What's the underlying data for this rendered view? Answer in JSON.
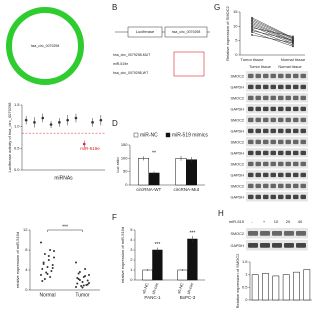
{
  "panel_a": {
    "center_label": "hsa_circ_0079298"
  },
  "panel_b": {
    "letter": "B",
    "construct": [
      "Luciferase",
      "hsa_circ_0079298"
    ],
    "rows": [
      "hsa_circ_0079298-MUT",
      "miR-519e",
      "hsa_circ_0079298-WT"
    ]
  },
  "panel_c": {
    "type": "dot",
    "ylabel": "Luciferase activity of hsa_circ_0079298",
    "xlabel": "miRNAs",
    "categories": [
      null,
      null,
      null,
      null,
      null,
      null,
      null,
      null,
      null,
      null
    ],
    "values": [
      1.15,
      1.1,
      1.2,
      1.05,
      1.1,
      1.15,
      1.2,
      0.6,
      1.1,
      1.15
    ],
    "errors": [
      0.1,
      0.12,
      0.1,
      0.08,
      0.1,
      0.12,
      0.1,
      0.08,
      0.1,
      0.12
    ],
    "highlight": 7,
    "highlight_label": "miR-519e",
    "reference": 0.85,
    "color": "#333333",
    "highlight_color": "#d62728",
    "ylim": [
      0,
      1.5
    ],
    "yticks": [
      {
        "value": 0,
        "label": "0.0"
      },
      {
        "value": 0.5,
        "label": "0.5"
      },
      {
        "value": 1,
        "label": "1.0"
      },
      {
        "value": 1.5,
        "label": "1.5"
      }
    ]
  },
  "panel_d": {
    "letter": "D",
    "type": "bar",
    "ylabel": "Luc ratio",
    "legend": "top",
    "categories": [
      "circRNA-WT",
      "circRNA-Mut"
    ],
    "series": [
      {
        "name": "miR-NC",
        "color": "#ffffff",
        "values": [
          100,
          100
        ],
        "errors": [
          8,
          9
        ]
      },
      {
        "name": "miR-519 mimics",
        "color": "#111111",
        "values": [
          45,
          95
        ],
        "errors": [
          6,
          10
        ]
      }
    ],
    "significance": [
      "**",
      null
    ],
    "ylim": [
      0,
      150
    ],
    "yticks": [
      0,
      50,
      100,
      150
    ]
  },
  "panel_e": {
    "type": "scatter",
    "ylabel": "relative expression of miR-519d",
    "categories": [
      "Normal",
      "Tumor"
    ],
    "groups": [
      [
        9.5,
        8,
        7.2,
        6.5,
        6,
        5.5,
        5,
        4.6,
        4.2,
        3.8,
        3.5,
        3,
        2.6,
        2.2,
        7.8,
        6.8,
        5.2,
        4.4,
        3.2,
        1.8
      ],
      [
        5.5,
        4.2,
        3.6,
        3,
        2.6,
        2.2,
        1.9,
        1.6,
        1.3,
        1,
        0.8,
        0.6,
        2.8,
        2,
        1.4,
        0.9,
        3.3,
        1.1,
        0.5,
        2.4
      ]
    ],
    "significance": "***",
    "ylim": [
      0,
      12
    ],
    "yticks": [
      0,
      4,
      8,
      12
    ]
  },
  "panel_f": {
    "letter": "F",
    "type": "bar",
    "ylabel": "relative expression of miR-519d",
    "legend": "under-bars",
    "categories": [
      "PANC-1",
      "BxPC-3"
    ],
    "series": [
      {
        "name": "sh-NC",
        "color": "#ffffff",
        "values": [
          1,
          1
        ],
        "errors": [
          0.1,
          0.1
        ]
      },
      {
        "name": "sh-circ",
        "color": "#111111",
        "values": [
          3,
          4.1
        ],
        "errors": [
          0.25,
          0.3
        ]
      }
    ],
    "significance": [
      "***",
      "***"
    ],
    "ylim": [
      0,
      5
    ],
    "yticks": [
      0,
      1,
      2,
      3,
      4,
      5
    ]
  },
  "panel_g": {
    "letter": "G",
    "type": "paired",
    "ylabel": "Relative expression of SMOC2",
    "categories": [
      "Tumor tissue",
      "Normal tissue"
    ],
    "tumor": [
      13,
      12,
      11.5,
      10.5,
      10,
      9.5,
      9,
      8.5,
      8,
      7,
      12.5,
      11
    ],
    "normal": [
      6,
      5.5,
      5,
      4.5,
      4,
      6.5,
      3.5,
      5.2,
      3,
      4.2,
      5.8,
      4.8
    ],
    "ylim": [
      0,
      15
    ],
    "yticks": [
      0,
      5,
      10,
      15
    ],
    "blot": {
      "groups": [
        "Tumor tissue",
        "Normal tissue"
      ],
      "rows": [
        "SMOC2",
        "GAPDH",
        "SMOC2",
        "GAPDH",
        "SMOC2",
        "GAPDH",
        "SMOC2",
        "GAPDH",
        "SMOC2",
        "GAPDH",
        "SMOC2",
        "GAPDH"
      ]
    }
  },
  "panel_h": {
    "letter": "H",
    "treatment": "miR-519",
    "columns": [
      "-",
      "+",
      "10",
      "20",
      "40"
    ],
    "blot_rows": [
      "SMOC2",
      "GAPDH"
    ],
    "chart": {
      "type": "bar",
      "ylabel": "Relative expression of SMOC2",
      "color": "#ffffff",
      "categories": [
        null,
        null,
        null,
        null,
        null,
        null
      ],
      "values": [
        1,
        1.05,
        0.95,
        1,
        1.1,
        1.2
      ],
      "ylim": [
        0,
        1.5
      ],
      "yticks": [
        0,
        0.5,
        1,
        1.5
      ]
    }
  }
}
